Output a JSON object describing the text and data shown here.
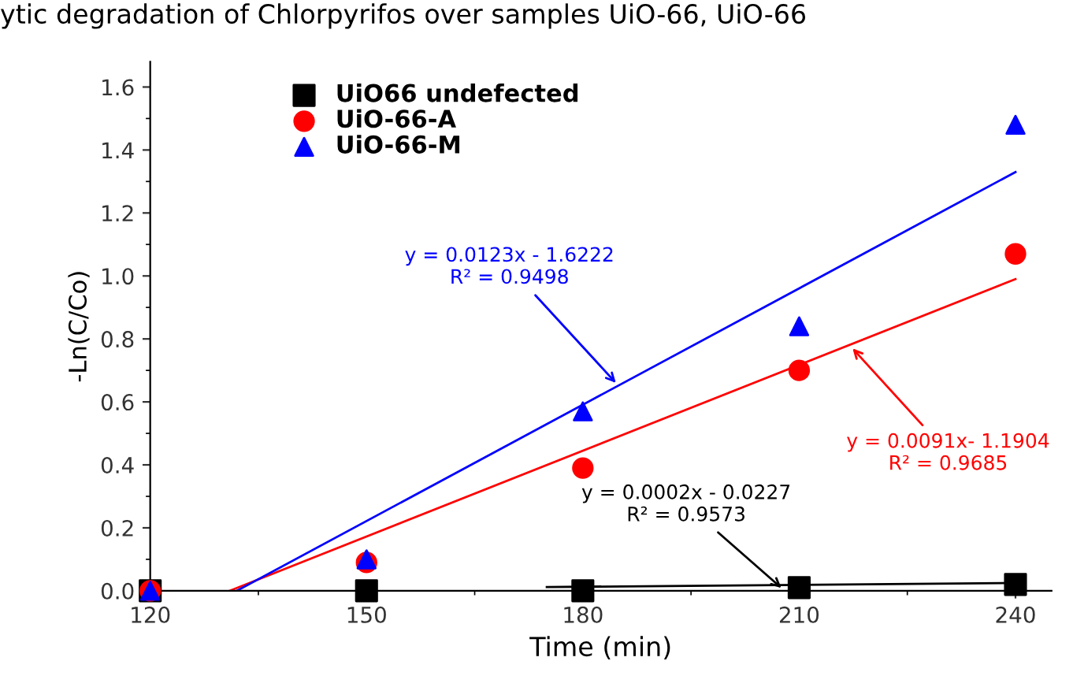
{
  "chart_data": {
    "type": "scatter",
    "title": "ytic degradation of Chlorpyrifos over samples UiO-66, UiO-66",
    "xlabel": "Time (min)",
    "ylabel": "-Ln(C/Co)",
    "xlim": [
      120,
      245
    ],
    "ylim": [
      0,
      1.68
    ],
    "xticks": [
      120,
      150,
      180,
      210,
      240
    ],
    "yticks": [
      {
        "value": 0,
        "label": "0.0"
      },
      0.2,
      0.4,
      0.6,
      0.8,
      {
        "value": 1,
        "label": "1.0"
      },
      1.2,
      1.4,
      1.6
    ],
    "grid": false,
    "legend": "top left",
    "series": [
      {
        "name": "UiO66 undefected",
        "color": "#000000",
        "marker": "square",
        "x": [
          120,
          150,
          180,
          210,
          240
        ],
        "values": [
          0,
          0,
          0,
          0.01,
          0.02
        ]
      },
      {
        "name": "UiO-66-A",
        "color": "#ff0000",
        "marker": "circle",
        "x": [
          120,
          150,
          180,
          210,
          240
        ],
        "values": [
          0,
          0.09,
          0.39,
          0.7,
          1.07
        ]
      },
      {
        "name": "UiO-66-M",
        "color": "#0000ff",
        "marker": "triangle",
        "x": [
          120,
          150,
          180,
          210,
          240
        ],
        "values": [
          0,
          0.1,
          0.57,
          0.84,
          1.48
        ]
      },
      {
        "type": "line",
        "color": "#000000",
        "x": [
          175,
          240
        ],
        "values": [
          0.012,
          0.025
        ]
      },
      {
        "type": "line",
        "color": "#ff0000",
        "x": [
          131,
          240
        ],
        "values": [
          0,
          0.99
        ]
      },
      {
        "type": "line",
        "color": "#0000ff",
        "x": [
          132,
          240
        ],
        "values": [
          0,
          1.33
        ]
      }
    ],
    "annotations": [
      {
        "text": "y = 0.0002x - 0.0227\nR² = 0.9573",
        "x": 208,
        "y": 0.0
      },
      {
        "text": "y = 0.0091x- 1.1904\nR² = 0.9685",
        "x": 217,
        "y": 0.78
      },
      {
        "text": "y = 0.0123x - 1.6222\nR² = 0.9498",
        "x": 185,
        "y": 0.65
      }
    ]
  }
}
